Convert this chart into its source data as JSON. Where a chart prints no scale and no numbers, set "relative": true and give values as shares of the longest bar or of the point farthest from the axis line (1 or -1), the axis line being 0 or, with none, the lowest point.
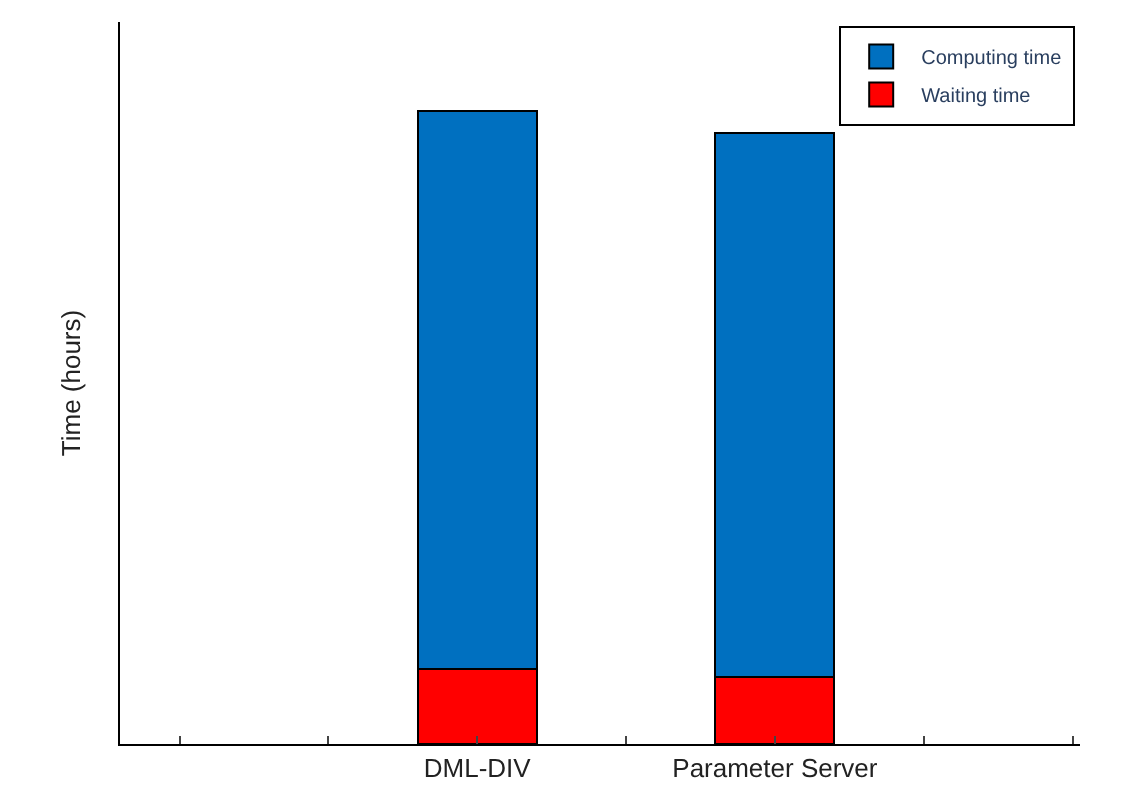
{
  "chart_data": {
    "type": "bar",
    "stacked": true,
    "relative": true,
    "ylabel": "Time (hours)",
    "categories": [
      null,
      null,
      "DML-DIV",
      null,
      "Parameter Server",
      null,
      null
    ],
    "series": [
      {
        "name": "Waiting time",
        "color": "#ff0000",
        "values": [
          null,
          null,
          0.119,
          null,
          0.106,
          null,
          null
        ]
      },
      {
        "name": "Computing time",
        "color": "#0070c0",
        "values": [
          null,
          null,
          0.881,
          null,
          0.859,
          null,
          null
        ]
      }
    ],
    "legend": "top right"
  }
}
